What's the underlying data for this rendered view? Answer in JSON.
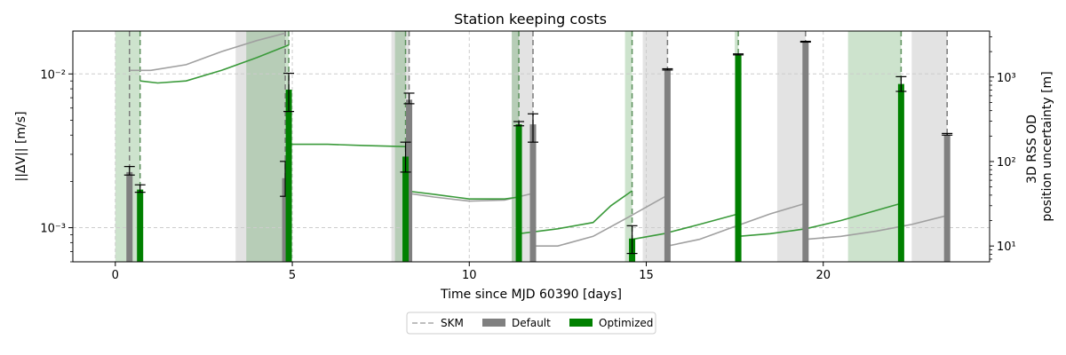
{
  "chart_data": {
    "type": "bar",
    "title": "Station keeping costs",
    "xlabel": "Time since MJD 60390 [days]",
    "ylabel_left": "||ΔV|| [m/s]",
    "ylabel_right_line1": "3D RSS OD",
    "ylabel_right_line2": "position uncertainty [m]",
    "xlim": [
      -1.2,
      24.7
    ],
    "ylim_left": [
      0.0006,
      0.019
    ],
    "ylim_right": [
      6.5,
      3500
    ],
    "y_scale": "log",
    "grid": true,
    "x_ticks": [
      0,
      5,
      10,
      15,
      20
    ],
    "x_tick_labels": [
      "0",
      "5",
      "10",
      "15",
      "20"
    ],
    "left_ticks": [
      0.001,
      0.01
    ],
    "left_tick_labels": [
      "10⁻³",
      "10⁻²"
    ],
    "right_ticks": [
      10,
      100,
      1000
    ],
    "right_tick_labels": [
      "10¹",
      "10²",
      "10³"
    ],
    "skm_default_times": [
      0.4,
      4.8,
      8.3,
      11.8,
      15.6,
      19.5,
      23.5
    ],
    "skm_optimized_times": [
      0.7,
      4.9,
      8.2,
      11.4,
      14.6,
      17.6,
      22.2
    ],
    "series": [
      {
        "name": "Default",
        "color": "#808080",
        "x": [
          0.4,
          4.8,
          8.3,
          11.8,
          15.6,
          19.5,
          23.5
        ],
        "values": [
          0.0023,
          0.0021,
          0.0068,
          0.0047,
          0.0107,
          0.0162,
          0.004
        ],
        "err_low": [
          0.0022,
          0.0016,
          0.0064,
          0.0036,
          0.0106,
          0.0161,
          0.004
        ],
        "err_high": [
          0.0025,
          0.0027,
          0.0075,
          0.0055,
          0.0108,
          0.0163,
          0.0041
        ]
      },
      {
        "name": "Optimized",
        "color": "#008000",
        "x": [
          0.7,
          4.9,
          8.2,
          11.4,
          14.6,
          17.6,
          22.2
        ],
        "values": [
          0.00177,
          0.0079,
          0.0029,
          0.0047,
          0.00085,
          0.0134,
          0.0086
        ],
        "err_low": [
          0.0017,
          0.0057,
          0.0023,
          0.0046,
          0.00068,
          0.0133,
          0.0077
        ],
        "err_high": [
          0.0019,
          0.0101,
          0.0036,
          0.0049,
          0.00103,
          0.0135,
          0.0096
        ]
      }
    ],
    "uncertainty_default": {
      "color": "#a0a0a0",
      "segments": [
        {
          "x": [
            0.4,
            1.0,
            2.0,
            3.0,
            4.0,
            4.8
          ],
          "y": [
            1200,
            1200,
            1400,
            2000,
            2700,
            3300
          ]
        },
        {
          "x": [
            8.3,
            9.0,
            10.0,
            11.0,
            11.8
          ],
          "y": [
            42,
            38,
            34,
            35,
            42
          ]
        },
        {
          "x": [
            11.8,
            12.5,
            13.5,
            14.5,
            15.6
          ],
          "y": [
            10,
            10,
            13,
            22,
            40
          ]
        },
        {
          "x": [
            15.6,
            16.5,
            17.5,
            18.5,
            19.5
          ],
          "y": [
            10,
            12,
            17,
            24,
            32
          ]
        },
        {
          "x": [
            19.5,
            20.5,
            21.5,
            22.5,
            23.5
          ],
          "y": [
            12,
            13,
            15,
            18,
            23
          ]
        }
      ]
    },
    "uncertainty_optimized": {
      "color": "#3a9a3a",
      "segments": [
        {
          "x": [
            0.7,
            1.2,
            2.0,
            3.0,
            4.0,
            4.9
          ],
          "y": [
            900,
            850,
            900,
            1200,
            1700,
            2400
          ]
        },
        {
          "x": [
            4.9,
            6.0,
            7.0,
            8.2
          ],
          "y": [
            160,
            160,
            155,
            150
          ]
        },
        {
          "x": [
            8.2,
            9.0,
            10.0,
            11.0,
            11.4
          ],
          "y": [
            45,
            41,
            36,
            36,
            38
          ]
        },
        {
          "x": [
            11.4,
            12.5,
            13.5,
            14.0,
            14.6
          ],
          "y": [
            14,
            16,
            19,
            30,
            45
          ]
        },
        {
          "x": [
            14.6,
            15.5,
            16.5,
            17.6
          ],
          "y": [
            12,
            14,
            18,
            24
          ]
        },
        {
          "x": [
            17.6,
            18.5,
            19.5,
            20.5,
            22.2
          ],
          "y": [
            13,
            14,
            16,
            20,
            32
          ]
        }
      ]
    },
    "shaded_default": [
      [
        3.4,
        4.8
      ],
      [
        7.8,
        8.3
      ],
      [
        11.2,
        11.8
      ],
      [
        14.9,
        15.6
      ],
      [
        18.7,
        19.5
      ],
      [
        22.5,
        23.5
      ]
    ],
    "shaded_optimized": [
      [
        0.0,
        0.7
      ],
      [
        3.7,
        4.9
      ],
      [
        7.9,
        8.2
      ],
      [
        11.2,
        11.4
      ],
      [
        14.4,
        14.6
      ],
      [
        17.5,
        17.6
      ],
      [
        20.7,
        22.2
      ]
    ],
    "legend": {
      "placement": "bottom-center",
      "skm_label": "SKM",
      "default_label": "Default",
      "optimized_label": "Optimized"
    }
  }
}
